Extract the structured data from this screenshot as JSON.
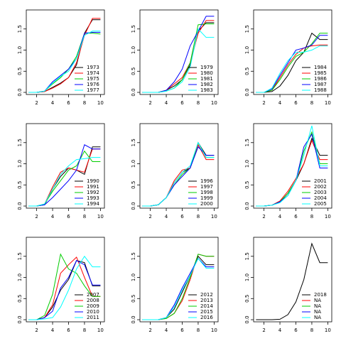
{
  "chart_data": [
    {
      "type": "line",
      "x": [
        1,
        2,
        3,
        4,
        5,
        6,
        7,
        8,
        9,
        10
      ],
      "xlim": [
        0.7,
        10.5
      ],
      "ylim": [
        -0.05,
        1.95
      ],
      "xticks": [
        2,
        4,
        6,
        8,
        10
      ],
      "yticks": [
        {
          "value": 0,
          "label": "0.0"
        },
        {
          "value": 0.5,
          "label": "0.5"
        },
        {
          "value": 1,
          "label": "1.0"
        },
        {
          "value": 1.5,
          "label": "1.5"
        }
      ],
      "legend": "bottomright",
      "series": [
        {
          "name": "1973",
          "color": "#000000",
          "values": [
            0,
            0,
            0.02,
            0.12,
            0.22,
            0.35,
            0.65,
            1.4,
            1.72,
            1.72
          ]
        },
        {
          "name": "1974",
          "color": "#FF0000",
          "values": [
            0,
            0,
            0.02,
            0.1,
            0.2,
            0.35,
            0.7,
            1.35,
            1.75,
            1.75
          ]
        },
        {
          "name": "1975",
          "color": "#00CD00",
          "values": [
            0,
            0,
            0.03,
            0.2,
            0.35,
            0.55,
            0.85,
            1.4,
            1.4,
            1.38
          ]
        },
        {
          "name": "1976",
          "color": "#0000FF",
          "values": [
            0,
            0,
            0.03,
            0.25,
            0.4,
            0.55,
            0.8,
            1.4,
            1.42,
            1.42
          ]
        },
        {
          "name": "1977",
          "color": "#00FFFF",
          "values": [
            0,
            0,
            0.03,
            0.22,
            0.38,
            0.5,
            0.8,
            1.35,
            1.45,
            1.45
          ]
        }
      ]
    },
    {
      "type": "line",
      "x": [
        1,
        2,
        3,
        4,
        5,
        6,
        7,
        8,
        9,
        10
      ],
      "xlim": [
        0.7,
        10.5
      ],
      "ylim": [
        -0.05,
        1.95
      ],
      "xticks": [
        2,
        4,
        6,
        8,
        10
      ],
      "yticks": [
        {
          "value": 0,
          "label": "0.0"
        },
        {
          "value": 0.5,
          "label": "0.5"
        },
        {
          "value": 1,
          "label": "1.0"
        },
        {
          "value": 1.5,
          "label": "1.5"
        }
      ],
      "legend": "bottomright",
      "series": [
        {
          "name": "1979",
          "color": "#000000",
          "values": [
            0,
            0,
            0,
            0.05,
            0.15,
            0.3,
            0.65,
            1.45,
            1.65,
            1.65
          ]
        },
        {
          "name": "1980",
          "color": "#FF0000",
          "values": [
            0,
            0,
            0,
            0.05,
            0.2,
            0.35,
            0.7,
            1.4,
            1.7,
            1.7
          ]
        },
        {
          "name": "1981",
          "color": "#00CD00",
          "values": [
            0,
            0,
            0,
            0.03,
            0.1,
            0.3,
            0.7,
            1.6,
            1.62,
            1.62
          ]
        },
        {
          "name": "1982",
          "color": "#0000FF",
          "values": [
            0,
            0,
            0,
            0.05,
            0.25,
            0.55,
            1.1,
            1.45,
            1.8,
            1.8
          ]
        },
        {
          "name": "1983",
          "color": "#00FFFF",
          "values": [
            0,
            0,
            0,
            0.03,
            0.1,
            0.25,
            0.6,
            1.5,
            1.3,
            1.3
          ]
        }
      ]
    },
    {
      "type": "line",
      "x": [
        1,
        2,
        3,
        4,
        5,
        6,
        7,
        8,
        9,
        10
      ],
      "xlim": [
        0.7,
        10.5
      ],
      "ylim": [
        -0.05,
        1.95
      ],
      "xticks": [
        2,
        4,
        6,
        8,
        10
      ],
      "yticks": [
        {
          "value": 0,
          "label": "0.0"
        },
        {
          "value": 0.5,
          "label": "0.5"
        },
        {
          "value": 1,
          "label": "1.0"
        },
        {
          "value": 1.5,
          "label": "1.5"
        }
      ],
      "legend": "bottomright",
      "series": [
        {
          "name": "1984",
          "color": "#000000",
          "values": [
            0,
            0,
            0.02,
            0.15,
            0.4,
            0.75,
            0.95,
            1.4,
            1.25,
            1.25
          ]
        },
        {
          "name": "1985",
          "color": "#FF0000",
          "values": [
            0,
            0,
            0.05,
            0.35,
            0.65,
            0.9,
            1.05,
            1.1,
            1.12,
            1.12
          ]
        },
        {
          "name": "1986",
          "color": "#00CD00",
          "values": [
            0,
            0,
            0.05,
            0.3,
            0.6,
            0.85,
            0.95,
            1.15,
            1.4,
            1.4
          ]
        },
        {
          "name": "1987",
          "color": "#0000FF",
          "values": [
            0,
            0,
            0.08,
            0.4,
            0.7,
            1.0,
            1.05,
            1.12,
            1.35,
            1.35
          ]
        },
        {
          "name": "1988",
          "color": "#00FFFF",
          "values": [
            0,
            0,
            0.1,
            0.45,
            0.75,
            0.95,
            0.95,
            1.0,
            1.1,
            1.1
          ]
        }
      ]
    },
    {
      "type": "line",
      "x": [
        1,
        2,
        3,
        4,
        5,
        6,
        7,
        8,
        9,
        10
      ],
      "xlim": [
        0.7,
        10.5
      ],
      "ylim": [
        -0.05,
        1.95
      ],
      "xticks": [
        2,
        4,
        6,
        8,
        10
      ],
      "yticks": [
        {
          "value": 0,
          "label": "0.0"
        },
        {
          "value": 0.5,
          "label": "0.5"
        },
        {
          "value": 1,
          "label": "1.0"
        },
        {
          "value": 1.5,
          "label": "1.5"
        }
      ],
      "legend": "bottomright",
      "series": [
        {
          "name": "1990",
          "color": "#000000",
          "values": [
            0,
            0,
            0.03,
            0.4,
            0.7,
            0.9,
            0.85,
            0.75,
            1.4,
            1.4
          ]
        },
        {
          "name": "1991",
          "color": "#FF0000",
          "values": [
            0,
            0,
            0.05,
            0.45,
            0.8,
            0.9,
            0.85,
            0.8,
            1.35,
            1.35
          ]
        },
        {
          "name": "1992",
          "color": "#00CD00",
          "values": [
            0,
            0,
            0.05,
            0.35,
            0.6,
            0.85,
            0.95,
            1.3,
            1.05,
            1.05
          ]
        },
        {
          "name": "1993",
          "color": "#0000FF",
          "values": [
            0,
            0,
            0.03,
            0.2,
            0.4,
            0.6,
            0.85,
            1.45,
            1.35,
            1.35
          ]
        },
        {
          "name": "1994",
          "color": "#00FFFF",
          "values": [
            0,
            0,
            0.05,
            0.4,
            0.75,
            0.95,
            1.1,
            1.12,
            1.15,
            1.15
          ]
        }
      ]
    },
    {
      "type": "line",
      "x": [
        1,
        2,
        3,
        4,
        5,
        6,
        7,
        8,
        9,
        10
      ],
      "xlim": [
        0.7,
        10.5
      ],
      "ylim": [
        -0.05,
        1.95
      ],
      "xticks": [
        2,
        4,
        6,
        8,
        10
      ],
      "yticks": [
        {
          "value": 0,
          "label": "0.0"
        },
        {
          "value": 0.5,
          "label": "0.5"
        },
        {
          "value": 1,
          "label": "1.0"
        },
        {
          "value": 1.5,
          "label": "1.5"
        }
      ],
      "legend": "bottomright",
      "series": [
        {
          "name": "1996",
          "color": "#000000",
          "values": [
            0,
            0,
            0.03,
            0.2,
            0.55,
            0.8,
            0.9,
            1.5,
            1.2,
            1.2
          ]
        },
        {
          "name": "1997",
          "color": "#FF0000",
          "values": [
            0,
            0,
            0.03,
            0.2,
            0.6,
            0.85,
            0.9,
            1.45,
            1.1,
            1.1
          ]
        },
        {
          "name": "1998",
          "color": "#00CD00",
          "values": [
            0,
            0,
            0.03,
            0.2,
            0.5,
            0.75,
            0.9,
            1.5,
            1.15,
            1.15
          ]
        },
        {
          "name": "1999",
          "color": "#0000FF",
          "values": [
            0,
            0,
            0.03,
            0.2,
            0.5,
            0.7,
            0.9,
            1.4,
            1.2,
            1.2
          ]
        },
        {
          "name": "2000",
          "color": "#00FFFF",
          "values": [
            0,
            0,
            0.03,
            0.2,
            0.55,
            0.8,
            0.95,
            1.5,
            1.15,
            1.15
          ]
        }
      ]
    },
    {
      "type": "line",
      "x": [
        1,
        2,
        3,
        4,
        5,
        6,
        7,
        8,
        9,
        10
      ],
      "xlim": [
        0.7,
        10.5
      ],
      "ylim": [
        -0.05,
        1.95
      ],
      "xticks": [
        2,
        4,
        6,
        8,
        10
      ],
      "yticks": [
        {
          "value": 0,
          "label": "0.0"
        },
        {
          "value": 0.5,
          "label": "0.5"
        },
        {
          "value": 1,
          "label": "1.0"
        },
        {
          "value": 1.5,
          "label": "1.5"
        }
      ],
      "legend": "bottomright",
      "series": [
        {
          "name": "2001",
          "color": "#000000",
          "values": [
            0,
            0,
            0.02,
            0.1,
            0.3,
            0.6,
            1.0,
            1.6,
            1.2,
            1.2
          ]
        },
        {
          "name": "2002",
          "color": "#FF0000",
          "values": [
            0,
            0,
            0.02,
            0.12,
            0.35,
            0.65,
            1.0,
            1.55,
            1.1,
            1.1
          ]
        },
        {
          "name": "2003",
          "color": "#00CD00",
          "values": [
            0,
            0,
            0.02,
            0.1,
            0.3,
            0.6,
            1.3,
            1.75,
            1.0,
            1.0
          ]
        },
        {
          "name": "2004",
          "color": "#0000FF",
          "values": [
            0,
            0,
            0.02,
            0.1,
            0.25,
            0.6,
            1.4,
            1.7,
            0.9,
            0.9
          ]
        },
        {
          "name": "2005",
          "color": "#00FFFF",
          "values": [
            0,
            0,
            0.02,
            0.08,
            0.25,
            0.6,
            1.2,
            1.9,
            0.95,
            0.95
          ]
        }
      ]
    },
    {
      "type": "line",
      "x": [
        1,
        2,
        3,
        4,
        5,
        6,
        7,
        8,
        9,
        10
      ],
      "xlim": [
        0.7,
        10.5
      ],
      "ylim": [
        -0.05,
        1.95
      ],
      "xticks": [
        2,
        4,
        6,
        8,
        10
      ],
      "yticks": [
        {
          "value": 0,
          "label": "0.0"
        },
        {
          "value": 0.5,
          "label": "0.5"
        },
        {
          "value": 1,
          "label": "1.0"
        },
        {
          "value": 1.5,
          "label": "1.5"
        }
      ],
      "legend": "bottomright",
      "series": [
        {
          "name": "2007",
          "color": "#000000",
          "values": [
            0,
            0,
            0.05,
            0.3,
            0.7,
            0.95,
            1.4,
            1.35,
            0.8,
            0.8
          ]
        },
        {
          "name": "2008",
          "color": "#FF0000",
          "values": [
            0,
            0,
            0.05,
            0.35,
            1.1,
            1.3,
            1.48,
            1.0,
            0.55,
            0.55
          ]
        },
        {
          "name": "2009",
          "color": "#00CD00",
          "values": [
            0,
            0,
            0.1,
            0.6,
            1.55,
            1.2,
            1.1,
            0.8,
            0.55,
            0.55
          ]
        },
        {
          "name": "2010",
          "color": "#0000FF",
          "values": [
            0,
            0,
            0.05,
            0.2,
            0.75,
            1.0,
            1.4,
            1.3,
            0.82,
            0.82
          ]
        },
        {
          "name": "2011",
          "color": "#00FFFF",
          "values": [
            0,
            0,
            0.02,
            0.05,
            0.3,
            0.7,
            1.2,
            1.5,
            1.25,
            1.25
          ]
        }
      ]
    },
    {
      "type": "line",
      "x": [
        1,
        2,
        3,
        4,
        5,
        6,
        7,
        8,
        9,
        10
      ],
      "xlim": [
        0.7,
        10.5
      ],
      "ylim": [
        -0.05,
        1.95
      ],
      "xticks": [
        2,
        4,
        6,
        8,
        10
      ],
      "yticks": [
        {
          "value": 0,
          "label": "0.0"
        },
        {
          "value": 0.5,
          "label": "0.5"
        },
        {
          "value": 1,
          "label": "1.0"
        },
        {
          "value": 1.5,
          "label": "1.5"
        }
      ],
      "legend": "bottomright",
      "series": [
        {
          "name": "2012",
          "color": "#000000",
          "values": [
            0,
            0,
            0,
            0.05,
            0.25,
            0.65,
            1.05,
            1.5,
            1.3,
            1.3
          ]
        },
        {
          "name": "2013",
          "color": "#FF0000",
          "values": [
            0,
            0,
            0,
            0.03,
            0.15,
            0.45,
            0.95,
            1.55,
            1.5,
            1.5
          ]
        },
        {
          "name": "2014",
          "color": "#00CD00",
          "values": [
            0,
            0,
            0,
            0.03,
            0.15,
            0.5,
            1.0,
            1.55,
            1.5,
            1.5
          ]
        },
        {
          "name": "2015",
          "color": "#0000FF",
          "values": [
            0,
            0,
            0,
            0.05,
            0.35,
            0.75,
            1.1,
            1.45,
            1.25,
            1.25
          ]
        },
        {
          "name": "2016",
          "color": "#00FFFF",
          "values": [
            0,
            0,
            0,
            0.05,
            0.3,
            0.7,
            1.05,
            1.45,
            1.22,
            1.22
          ]
        }
      ]
    },
    {
      "type": "line",
      "x": [
        1,
        2,
        3,
        4,
        5,
        6,
        7,
        8,
        9,
        10
      ],
      "xlim": [
        0.7,
        10.5
      ],
      "ylim": [
        -0.05,
        1.95
      ],
      "xticks": [
        2,
        4,
        6,
        8,
        10
      ],
      "yticks": [
        {
          "value": 0,
          "label": "0.0"
        },
        {
          "value": 0.5,
          "label": "0.5"
        },
        {
          "value": 1,
          "label": "1.0"
        },
        {
          "value": 1.5,
          "label": "1.5"
        }
      ],
      "legend": "bottomright",
      "series": [
        {
          "name": "2018",
          "color": "#000000",
          "values": [
            0,
            0,
            0,
            0.01,
            0.12,
            0.42,
            0.95,
            1.8,
            1.35,
            1.35
          ]
        },
        {
          "name": "NA",
          "color": "#FF0000",
          "values": [
            null,
            null,
            null,
            null,
            null,
            null,
            null,
            null,
            null,
            null
          ]
        },
        {
          "name": "NA",
          "color": "#00CD00",
          "values": [
            null,
            null,
            null,
            null,
            null,
            null,
            null,
            null,
            null,
            null
          ]
        },
        {
          "name": "NA",
          "color": "#0000FF",
          "values": [
            null,
            null,
            null,
            null,
            null,
            null,
            null,
            null,
            null,
            null
          ]
        },
        {
          "name": "NA",
          "color": "#00FFFF",
          "values": [
            null,
            null,
            null,
            null,
            null,
            null,
            null,
            null,
            null,
            null
          ]
        }
      ]
    }
  ]
}
